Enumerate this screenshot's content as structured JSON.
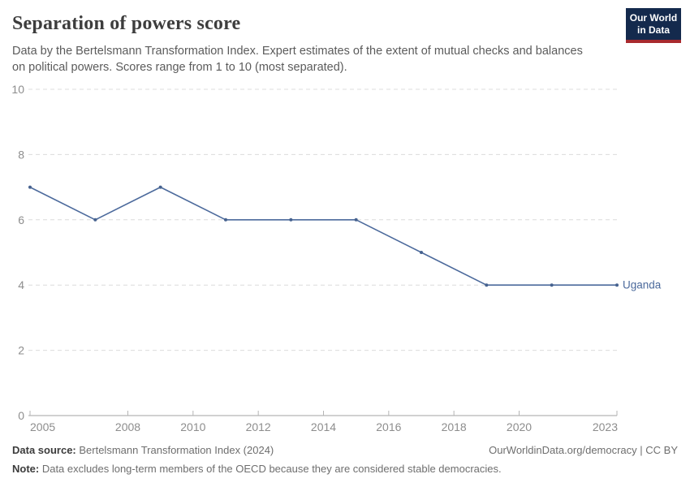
{
  "header": {
    "title": "Separation of powers score",
    "subtitle_lines": [
      "Data by the Bertelsmann Transformation Index. Expert estimates of the extent of mutual checks and balances",
      "on political powers. Scores range from 1 to 10 (most separated)."
    ],
    "logo": {
      "line1": "Our World",
      "line2": "in Data"
    }
  },
  "chart_data": {
    "type": "line",
    "title": "Separation of powers score",
    "x": [
      2005,
      2007,
      2009,
      2011,
      2013,
      2015,
      2017,
      2019,
      2021,
      2023
    ],
    "series": [
      {
        "name": "Uganda",
        "values": [
          7,
          6,
          7,
          6,
          6,
          6,
          5,
          4,
          4,
          4
        ],
        "color": "#4c6a9c"
      }
    ],
    "xticks": [
      2005,
      2008,
      2010,
      2012,
      2014,
      2016,
      2018,
      2020,
      2023
    ],
    "yticks": [
      0,
      2,
      4,
      6,
      8,
      10
    ],
    "xlabel": "",
    "ylabel": "",
    "ylim": [
      0,
      10
    ],
    "x_range": [
      2005,
      2023
    ],
    "grid": "horizontal-dashed",
    "legend_position": "end-of-line-label"
  },
  "footer": {
    "source_label": "Data source:",
    "source_value": " Bertelsmann Transformation Index (2024)",
    "credit": "OurWorldinData.org/democracy | CC BY",
    "note_label": "Note:",
    "note_value": " Data excludes long-term members of the OECD because they are considered stable democracies."
  },
  "colors": {
    "line": "#4c6a9c",
    "point": "#46628f",
    "series_label": "#4c6a9c",
    "gridline": "#dcdcdc",
    "axis_line": "#a3a3a3",
    "axis_tick": "#b5b5b5",
    "tick_label": "#8d8d8d",
    "title": "#3d3d3d",
    "subtitle": "#5b5b5b",
    "logo_bg": "#142a4d",
    "logo_stripe": "#a82a2e"
  }
}
